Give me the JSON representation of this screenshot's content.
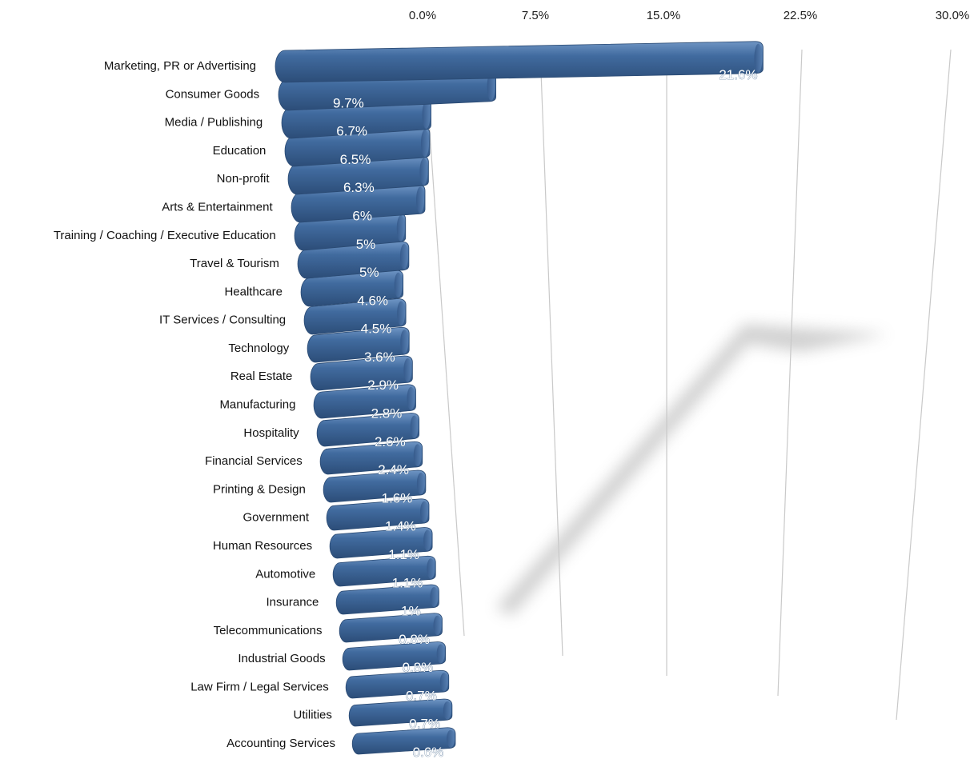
{
  "chart_data": {
    "type": "bar",
    "orientation": "horizontal",
    "style": "3d-perspective",
    "title": "",
    "xlabel": "",
    "ylabel": "",
    "xlim": [
      0,
      30
    ],
    "x_ticks": [
      "0.0%",
      "7.5%",
      "15.0%",
      "22.5%",
      "30.0%"
    ],
    "grid": true,
    "bar_color": "#3e6699",
    "categories": [
      "Marketing, PR or Advertising",
      "Consumer Goods",
      "Media / Publishing",
      "Education",
      "Non-profit",
      "Arts & Entertainment",
      "Training / Coaching / Executive Education",
      "Travel & Tourism",
      "Healthcare",
      "IT Services / Consulting",
      "Technology",
      "Real Estate",
      "Manufacturing",
      "Hospitality",
      "Financial Services",
      "Printing & Design",
      "Government",
      "Human Resources",
      "Automotive",
      "Insurance",
      "Telecommunications",
      "Industrial Goods",
      "Law Firm / Legal Services",
      "Utilities",
      "Accounting Services"
    ],
    "values": [
      21.6,
      9.7,
      6.7,
      6.5,
      6.3,
      6,
      5,
      5,
      4.6,
      4.5,
      3.6,
      2.9,
      2.8,
      2.6,
      2.4,
      1.6,
      1.4,
      1.1,
      1.1,
      1,
      0.8,
      0.8,
      0.7,
      0.7,
      0.6
    ],
    "value_labels": [
      "21.6%",
      "9.7%",
      "6.7%",
      "6.5%",
      "6.3%",
      "6%",
      "5%",
      "5%",
      "4.6%",
      "4.5%",
      "3.6%",
      "2.9%",
      "2.8%",
      "2.6%",
      "2.4%",
      "1.6%",
      "1.4%",
      "1.1%",
      "1.1%",
      "1%",
      "0.8%",
      "0.8%",
      "0.7%",
      "0.7%",
      "0.6%"
    ]
  }
}
